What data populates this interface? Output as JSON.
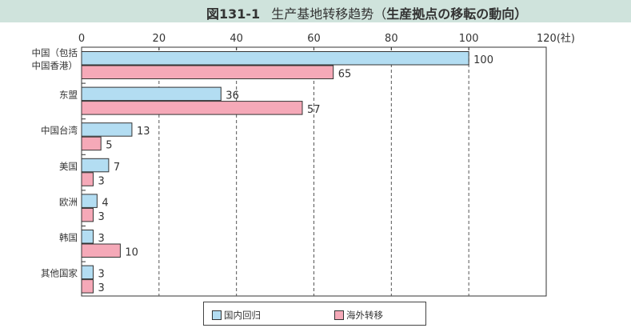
{
  "title": {
    "figure_number": "図131-1",
    "text": "生产基地转移趋势（",
    "text_jp": "生産拠点の移転の動向）"
  },
  "chart_data": {
    "type": "bar",
    "orientation": "horizontal",
    "categories": [
      "中国（包括中国香港）",
      "东盟",
      "中国台湾",
      "美国",
      "欧洲",
      "韩国",
      "其他国家"
    ],
    "category_lines": [
      [
        "中国（包括",
        "中国香港）"
      ],
      [
        "东盟"
      ],
      [
        "中国台湾"
      ],
      [
        "美国"
      ],
      [
        "欧洲"
      ],
      [
        "韩国"
      ],
      [
        "其他国家"
      ]
    ],
    "series": [
      {
        "name": "国内回归",
        "color": "#b3ddf2",
        "values": [
          100,
          36,
          13,
          7,
          4,
          3,
          3
        ]
      },
      {
        "name": "海外转移",
        "color": "#f5a9b8",
        "values": [
          65,
          57,
          5,
          3,
          3,
          10,
          3
        ]
      }
    ],
    "xlim": [
      0,
      120
    ],
    "xticks": [
      0,
      20,
      40,
      60,
      80,
      100,
      120
    ],
    "xunit": "(社)",
    "grid": "vertical dashed",
    "legend": "bottom-center"
  }
}
